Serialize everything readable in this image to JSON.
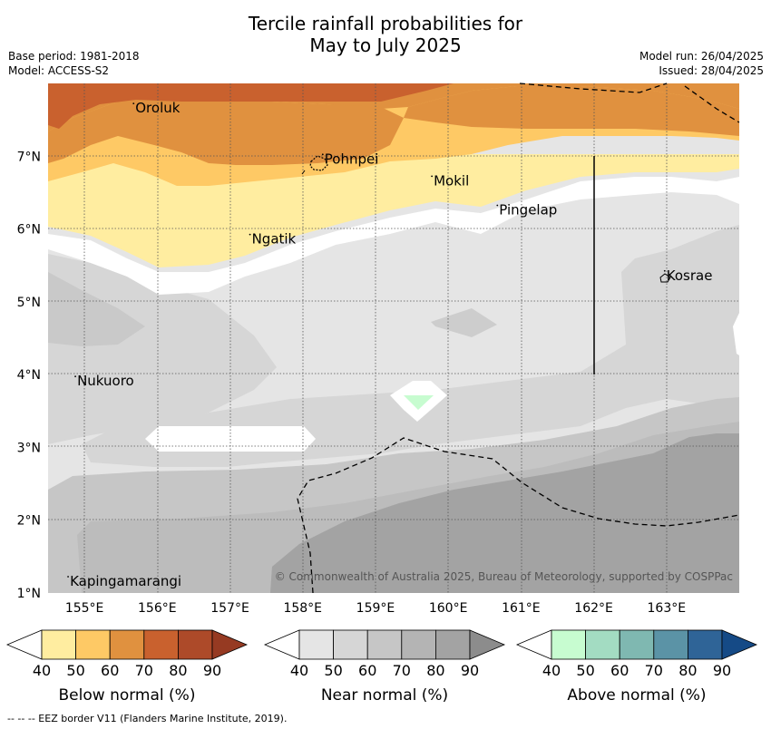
{
  "title_line1": "Tercile rainfall probabilities for",
  "title_line2": "May to July 2025",
  "base_period": "Base period: 1981-2018",
  "model": "Model: ACCESS-S2",
  "model_run": "Model run: 26/04/2025",
  "issued": "Issued: 28/04/2025",
  "copyright": "© Commonwealth of Australia 2025, Bureau of Meteorology, supported by COSPPac",
  "eez_note": "--  --  -- EEZ border V11 (Flanders Marine Institute, 2019).",
  "axes": {
    "lat_labels": [
      "1°N",
      "2°N",
      "3°N",
      "4°N",
      "5°N",
      "6°N",
      "7°N"
    ],
    "lon_labels": [
      "155°E",
      "156°E",
      "157°E",
      "158°E",
      "159°E",
      "160°E",
      "161°E",
      "162°E",
      "163°E"
    ],
    "lat_range": [
      1,
      8
    ],
    "lon_range": [
      154.5,
      164
    ]
  },
  "places": [
    {
      "name": "Oroluk",
      "lon": 155.7,
      "lat": 7.6
    },
    {
      "name": "Pohnpei",
      "lon": 158.3,
      "lat": 6.9
    },
    {
      "name": "Mokil",
      "lon": 159.8,
      "lat": 6.6
    },
    {
      "name": "Pingelap",
      "lon": 160.7,
      "lat": 6.2
    },
    {
      "name": "Ngatik",
      "lon": 157.3,
      "lat": 5.8
    },
    {
      "name": "Kosrae",
      "lon": 163.0,
      "lat": 5.3
    },
    {
      "name": "Nukuoro",
      "lon": 154.9,
      "lat": 3.85
    },
    {
      "name": "Kapingamarangi",
      "lon": 154.8,
      "lat": 1.1
    }
  ],
  "colorbars": [
    {
      "title": "Below normal (%)",
      "ticks": [
        "40",
        "50",
        "60",
        "70",
        "80",
        "90"
      ],
      "colors": [
        "#ffffff",
        "#ffeda0",
        "#fec965",
        "#e0913f",
        "#c9612e",
        "#ad4a29",
        "#963a22"
      ]
    },
    {
      "title": "Near normal (%)",
      "ticks": [
        "40",
        "50",
        "60",
        "70",
        "80",
        "90"
      ],
      "colors": [
        "#ffffff",
        "#e5e5e5",
        "#d6d6d6",
        "#c6c6c6",
        "#b4b4b4",
        "#a3a3a3",
        "#8c8c8c"
      ]
    },
    {
      "title": "Above normal (%)",
      "ticks": [
        "40",
        "50",
        "60",
        "70",
        "80",
        "90"
      ],
      "colors": [
        "#ffffff",
        "#c7fcd0",
        "#a3dcc2",
        "#7fb8b1",
        "#5b93a6",
        "#2f6497",
        "#154a86"
      ]
    }
  ]
}
